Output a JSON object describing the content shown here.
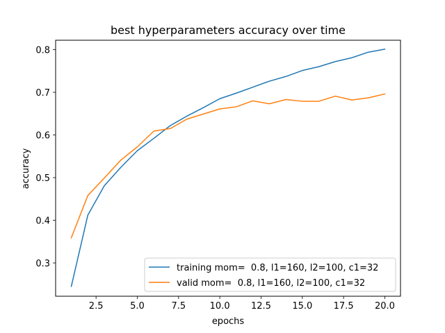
{
  "chart_data": {
    "type": "line",
    "title": "best hyperparameters accuracy over time",
    "xlabel": "epochs",
    "ylabel": "accuracy",
    "xlim": [
      0.05,
      20.95
    ],
    "ylim": [
      0.222,
      0.822
    ],
    "xticks": [
      2.5,
      5.0,
      7.5,
      10.0,
      12.5,
      15.0,
      17.5,
      20.0
    ],
    "xtick_labels": [
      "2.5",
      "5.0",
      "7.5",
      "10.0",
      "12.5",
      "15.0",
      "17.5",
      "20.0"
    ],
    "yticks": [
      0.3,
      0.4,
      0.5,
      0.6,
      0.7,
      0.8
    ],
    "ytick_labels": [
      "0.3",
      "0.4",
      "0.5",
      "0.6",
      "0.7",
      "0.8"
    ],
    "grid": false,
    "legend_position": "lower-right",
    "x": [
      1,
      2,
      3,
      4,
      5,
      6,
      7,
      8,
      9,
      10,
      11,
      12,
      13,
      14,
      15,
      16,
      17,
      18,
      19,
      20
    ],
    "series": [
      {
        "name": "training mom=  0.8, l1=160, l2=100, c1=32",
        "color": "#1f77b4",
        "values": [
          0.245,
          0.412,
          0.481,
          0.524,
          0.563,
          0.592,
          0.622,
          0.644,
          0.664,
          0.685,
          0.698,
          0.712,
          0.726,
          0.737,
          0.751,
          0.76,
          0.772,
          0.781,
          0.794,
          0.801
        ]
      },
      {
        "name": "valid mom=  0.8, l1=160, l2=100, c1=32",
        "color": "#ff7f0e",
        "values": [
          0.359,
          0.458,
          0.499,
          0.541,
          0.572,
          0.609,
          0.615,
          0.637,
          0.649,
          0.661,
          0.666,
          0.68,
          0.673,
          0.683,
          0.679,
          0.679,
          0.691,
          0.682,
          0.687,
          0.696
        ]
      }
    ]
  }
}
